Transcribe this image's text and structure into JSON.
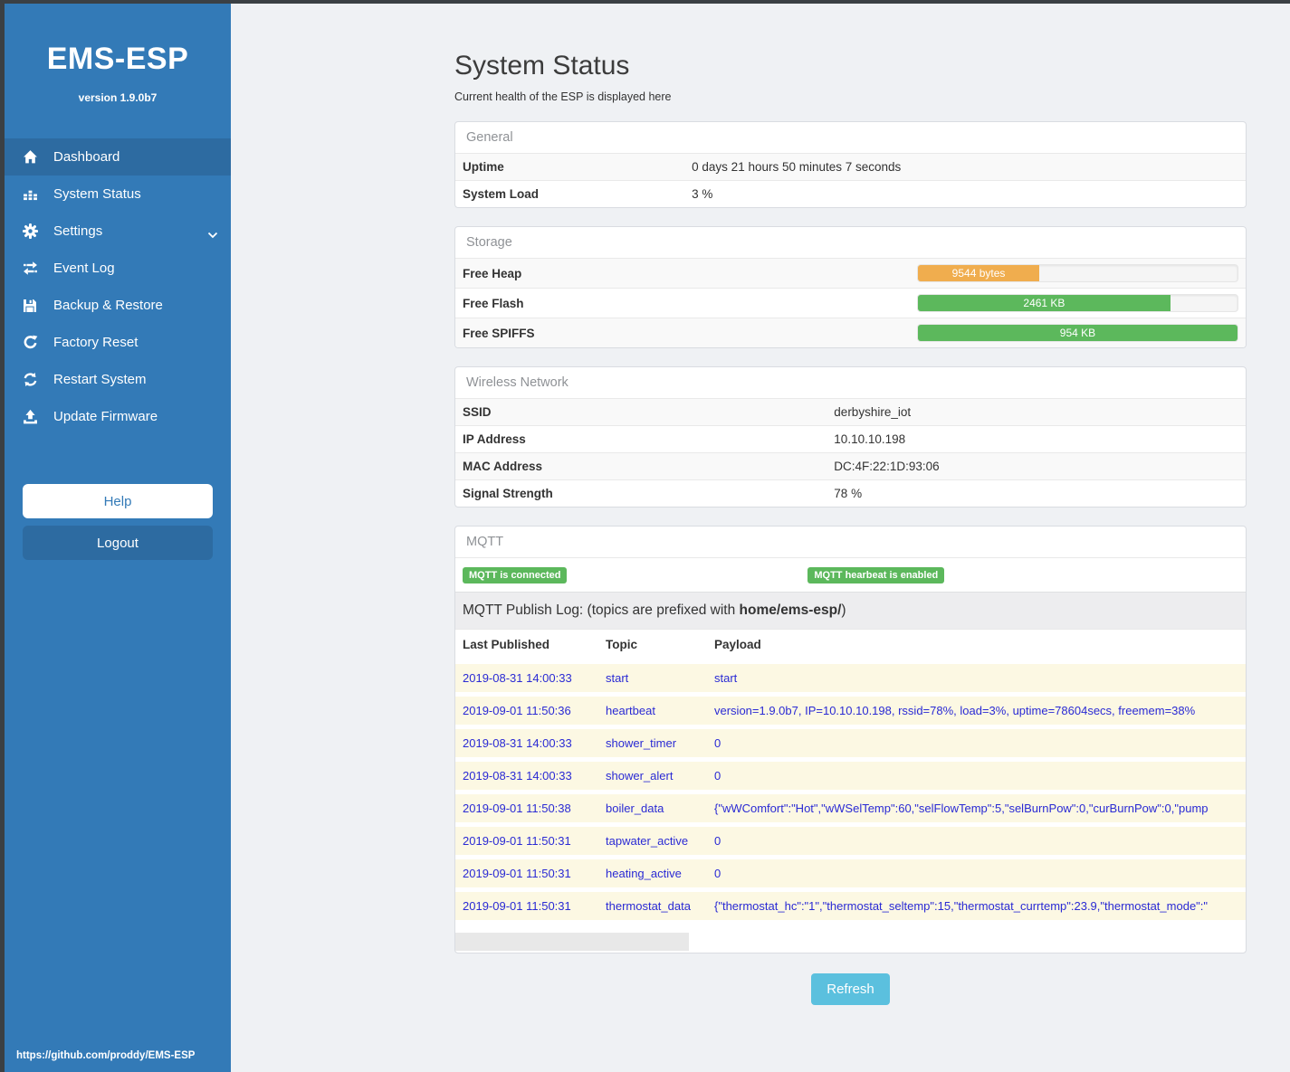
{
  "sidebar": {
    "brand": "EMS-ESP",
    "version": "version 1.9.0b7",
    "items": [
      {
        "label": "Dashboard",
        "icon": "home-icon",
        "active": true
      },
      {
        "label": "System Status",
        "icon": "system-status-icon",
        "active": false
      },
      {
        "label": "Settings",
        "icon": "gear-icon",
        "active": false,
        "chevron": true
      },
      {
        "label": "Event Log",
        "icon": "exchange-icon",
        "active": false
      },
      {
        "label": "Backup & Restore",
        "icon": "save-icon",
        "active": false
      },
      {
        "label": "Factory Reset",
        "icon": "rotate-right-icon",
        "active": false
      },
      {
        "label": "Restart System",
        "icon": "sync-icon",
        "active": false
      },
      {
        "label": "Update Firmware",
        "icon": "upload-icon",
        "active": false
      }
    ],
    "help_label": "Help",
    "logout_label": "Logout",
    "footer_link": "https://github.com/proddy/EMS-ESP"
  },
  "header": {
    "title": "System Status",
    "subtitle": "Current health of the ESP is displayed here"
  },
  "panels": {
    "general": {
      "title": "General",
      "rows": [
        {
          "label": "Uptime",
          "value": "0 days 21 hours 50 minutes 7 seconds"
        },
        {
          "label": "System Load",
          "value": "3 %"
        }
      ]
    },
    "storage": {
      "title": "Storage",
      "rows": [
        {
          "label": "Free Heap",
          "value": "9544 bytes",
          "percent": 38,
          "color": "#f0ad4e"
        },
        {
          "label": "Free Flash",
          "value": "2461 KB",
          "percent": 79,
          "color": "#5cb85c"
        },
        {
          "label": "Free SPIFFS",
          "value": "954 KB",
          "percent": 100,
          "color": "#5cb85c"
        }
      ]
    },
    "wireless": {
      "title": "Wireless Network",
      "rows": [
        {
          "label": "SSID",
          "value": "derbyshire_iot"
        },
        {
          "label": "IP Address",
          "value": "10.10.10.198"
        },
        {
          "label": "MAC Address",
          "value": "DC:4F:22:1D:93:06"
        },
        {
          "label": "Signal Strength",
          "value": "78 %"
        }
      ]
    },
    "mqtt": {
      "title": "MQTT",
      "badges": [
        "MQTT is connected",
        "MQTT hearbeat is enabled"
      ],
      "publish_log": {
        "prefix": "MQTT Publish Log: (topics are prefixed with ",
        "bold": "home/ems-esp/",
        "suffix": ")"
      },
      "table": {
        "headers": [
          "Last Published",
          "Topic",
          "Payload"
        ],
        "rows": [
          [
            "2019-08-31 14:00:33",
            "start",
            "start"
          ],
          [
            "2019-09-01 11:50:36",
            "heartbeat",
            "version=1.9.0b7, IP=10.10.10.198, rssid=78%, load=3%, uptime=78604secs, freemem=38%"
          ],
          [
            "2019-08-31 14:00:33",
            "shower_timer",
            "0"
          ],
          [
            "2019-08-31 14:00:33",
            "shower_alert",
            "0"
          ],
          [
            "2019-09-01 11:50:38",
            "boiler_data",
            "{\"wWComfort\":\"Hot\",\"wWSelTemp\":60,\"selFlowTemp\":5,\"selBurnPow\":0,\"curBurnPow\":0,\"pump"
          ],
          [
            "2019-09-01 11:50:31",
            "tapwater_active",
            "0"
          ],
          [
            "2019-09-01 11:50:31",
            "heating_active",
            "0"
          ],
          [
            "2019-09-01 11:50:31",
            "thermostat_data",
            "{\"thermostat_hc\":\"1\",\"thermostat_seltemp\":15,\"thermostat_currtemp\":23.9,\"thermostat_mode\":\""
          ]
        ]
      }
    }
  },
  "refresh_label": "Refresh",
  "colors": {
    "accent_blue": "#337ab7",
    "active_item_blue": "#2d6ba1",
    "success_green": "#5cb85c",
    "warning_orange": "#f0ad4e",
    "info_cyan": "#5bc0de",
    "log_row_cream": "#fcf8e3",
    "log_text_blue": "#2a2ad4"
  }
}
